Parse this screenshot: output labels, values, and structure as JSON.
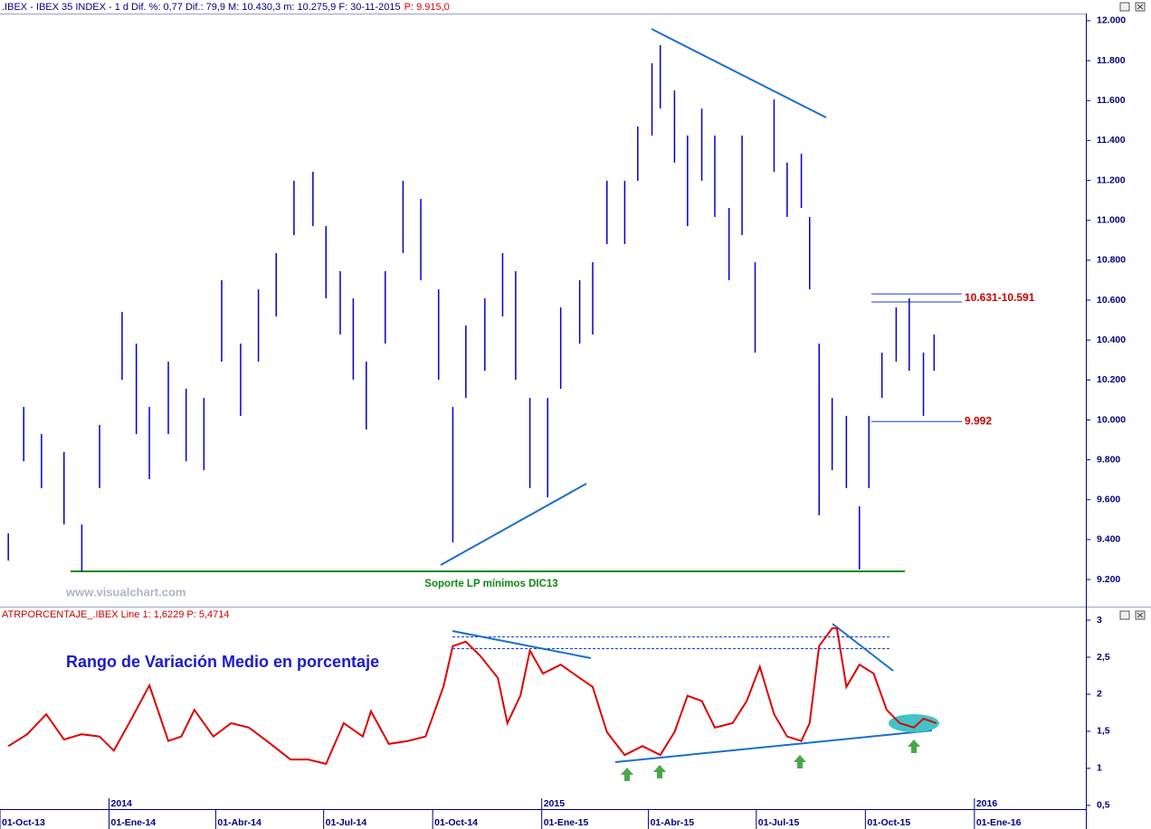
{
  "chart_data": [
    {
      "type": "range",
      "title": ".IBEX - IBEX 35 INDEX - 1 d Dif. %: 0,77 Dif.: 79,9 M: 10.430,3 m: 10.275,9 F: 30-11-2015",
      "title_price": "P: 9.915,0",
      "watermark": "www.visualchart.com",
      "annotation": "Soporte LP mínimos DIC13",
      "color": "#0000cc",
      "xlim": [
        "2013-10-01",
        "2016-04-04"
      ],
      "ylim": [
        9069,
        12036
      ],
      "yticks": [
        {
          "value": 9200,
          "label": "9.200"
        },
        {
          "value": 9400,
          "label": "9.400"
        },
        {
          "value": 9600,
          "label": "9.600"
        },
        {
          "value": 9800,
          "label": "9.800"
        },
        {
          "value": 10000,
          "label": "10.000"
        },
        {
          "value": 10200,
          "label": "10.200"
        },
        {
          "value": 10400,
          "label": "10.400"
        },
        {
          "value": 10600,
          "label": "10.600"
        },
        {
          "value": 10800,
          "label": "10.800"
        },
        {
          "value": 11000,
          "label": "11.000"
        },
        {
          "value": 11200,
          "label": "11.200"
        },
        {
          "value": 11400,
          "label": "11.400"
        },
        {
          "value": 11600,
          "label": "11.600"
        },
        {
          "value": 11800,
          "label": "11.800"
        },
        {
          "value": 12000,
          "label": "12.000"
        }
      ],
      "levels": [
        {
          "label": "10.631-10.591",
          "values": [
            10631,
            10591
          ]
        },
        {
          "label": "9.992",
          "values": [
            9992
          ]
        }
      ],
      "x": [
        "2013-10-08",
        "2013-10-21",
        "2013-11-05",
        "2013-11-24",
        "2013-12-09",
        "2013-12-24",
        "2014-01-12",
        "2014-01-24",
        "2014-02-04",
        "2014-02-20",
        "2014-03-07",
        "2014-03-22",
        "2014-04-06",
        "2014-04-22",
        "2014-05-07",
        "2014-05-22",
        "2014-06-06",
        "2014-06-22",
        "2014-07-03",
        "2014-07-15",
        "2014-07-26",
        "2014-08-06",
        "2014-08-22",
        "2014-09-06",
        "2014-09-21",
        "2014-10-06",
        "2014-10-18",
        "2014-10-29",
        "2014-11-14",
        "2014-11-29",
        "2014-12-10",
        "2014-12-22",
        "2015-01-06",
        "2015-01-17",
        "2015-02-02",
        "2015-02-13",
        "2015-02-25",
        "2015-03-12",
        "2015-03-23",
        "2015-04-04",
        "2015-04-11",
        "2015-04-23",
        "2015-05-04",
        "2015-05-16",
        "2015-05-27",
        "2015-06-08",
        "2015-06-19",
        "2015-06-30",
        "2015-07-16",
        "2015-07-27",
        "2015-08-08",
        "2015-08-15",
        "2015-08-23",
        "2015-09-03",
        "2015-09-15",
        "2015-09-26",
        "2015-10-04",
        "2015-10-15",
        "2015-10-27",
        "2015-11-07",
        "2015-11-19",
        "2015-11-28"
      ],
      "high": [
        9431,
        10065,
        9929,
        9839,
        9476,
        9975,
        10541,
        10382,
        10065,
        10292,
        10156,
        10110,
        10700,
        10382,
        10654,
        10836,
        11198,
        11243,
        10971,
        10745,
        10609,
        10292,
        10745,
        11198,
        11107,
        10654,
        10065,
        10473,
        10609,
        10836,
        10745,
        10110,
        10110,
        10564,
        10700,
        10790,
        11198,
        11198,
        11470,
        11787,
        11878,
        11651,
        11425,
        11560,
        11425,
        11062,
        11425,
        10790,
        11606,
        11289,
        11334,
        11017,
        10382,
        10110,
        10020,
        9567,
        10020,
        10337,
        10564,
        10609,
        10337,
        10428
      ],
      "low": [
        9295,
        9793,
        9658,
        9476,
        9241,
        9658,
        10201,
        9929,
        9703,
        9929,
        9793,
        9748,
        10292,
        10020,
        10292,
        10518,
        10926,
        10971,
        10609,
        10428,
        10201,
        9952,
        10382,
        10836,
        10700,
        10201,
        9386,
        10110,
        10246,
        10518,
        10201,
        9658,
        9612,
        10156,
        10382,
        10428,
        10881,
        10881,
        11198,
        11425,
        11560,
        11289,
        10971,
        11198,
        11017,
        10700,
        10926,
        10337,
        11243,
        11017,
        11062,
        10654,
        9522,
        9748,
        9658,
        9250,
        9658,
        10110,
        10292,
        10246,
        10020,
        10246
      ]
    },
    {
      "type": "line",
      "title": "ATRPORCENTAJE_.IBEX Line 1: 1,6229 P: 5,4714",
      "annotation": "Rango de Variación Medio en porcentaje",
      "color": "#e00000",
      "xlim": [
        "2013-10-01",
        "2016-04-04"
      ],
      "ylim": [
        0.45,
        3.0
      ],
      "yticks": [
        {
          "value": 0.5,
          "label": "0,5"
        },
        1,
        {
          "value": 1.5,
          "label": "1,5"
        },
        2,
        {
          "value": 2.5,
          "label": "2,5"
        },
        3
      ],
      "xticks": [
        {
          "value": "2013-10-01",
          "label": "01-Oct-13"
        },
        {
          "value": "2014-01-01",
          "label": "01-Ene-14"
        },
        {
          "value": "2014-04-01",
          "label": "01-Abr-14"
        },
        {
          "value": "2014-07-01",
          "label": "01-Jul-14"
        },
        {
          "value": "2014-10-01",
          "label": "01-Oct-14"
        },
        {
          "value": "2015-01-01",
          "label": "01-Ene-15"
        },
        {
          "value": "2015-04-01",
          "label": "01-Abr-15"
        },
        {
          "value": "2015-07-01",
          "label": "01-Jul-15"
        },
        {
          "value": "2015-10-01",
          "label": "01-Oct-15"
        },
        {
          "value": "2016-01-01",
          "label": "01-Ene-16"
        }
      ],
      "year_ticks": [
        {
          "value": "2014-01-01",
          "label": "2014"
        },
        {
          "value": "2015-01-01",
          "label": "2015"
        },
        {
          "value": "2016-01-01",
          "label": "2016"
        }
      ],
      "x": [
        "2013-10-08",
        "2013-10-24",
        "2013-11-09",
        "2013-11-24",
        "2013-12-09",
        "2013-12-24",
        "2014-01-05",
        "2014-01-20",
        "2014-02-04",
        "2014-02-20",
        "2014-03-03",
        "2014-03-14",
        "2014-03-30",
        "2014-04-14",
        "2014-04-29",
        "2014-05-14",
        "2014-06-03",
        "2014-06-18",
        "2014-07-03",
        "2014-07-18",
        "2014-08-03",
        "2014-08-10",
        "2014-08-25",
        "2014-09-10",
        "2014-09-25",
        "2014-10-10",
        "2014-10-18",
        "2014-10-29",
        "2014-11-10",
        "2014-11-25",
        "2014-12-03",
        "2014-12-14",
        "2014-12-22",
        "2015-01-02",
        "2015-01-17",
        "2015-02-02",
        "2015-02-13",
        "2015-02-25",
        "2015-03-12",
        "2015-03-27",
        "2015-04-11",
        "2015-04-23",
        "2015-05-04",
        "2015-05-16",
        "2015-05-27",
        "2015-06-11",
        "2015-06-23",
        "2015-07-04",
        "2015-07-16",
        "2015-07-27",
        "2015-08-08",
        "2015-08-15",
        "2015-08-23",
        "2015-09-03",
        "2015-09-07",
        "2015-09-15",
        "2015-09-26",
        "2015-10-08",
        "2015-10-19",
        "2015-10-30",
        "2015-11-11",
        "2015-11-19",
        "2015-11-30"
      ],
      "values": [
        1.3,
        1.46,
        1.73,
        1.39,
        1.46,
        1.43,
        1.24,
        1.67,
        2.12,
        1.37,
        1.43,
        1.79,
        1.43,
        1.61,
        1.55,
        1.37,
        1.12,
        1.12,
        1.06,
        1.61,
        1.43,
        1.77,
        1.33,
        1.37,
        1.43,
        2.1,
        2.65,
        2.71,
        2.52,
        2.22,
        1.61,
        1.98,
        2.59,
        2.28,
        2.4,
        2.22,
        2.1,
        1.49,
        1.18,
        1.3,
        1.18,
        1.49,
        1.98,
        1.91,
        1.55,
        1.61,
        1.91,
        2.37,
        1.73,
        1.43,
        1.37,
        1.61,
        2.65,
        2.89,
        2.89,
        2.1,
        2.4,
        2.28,
        1.79,
        1.61,
        1.55,
        1.67,
        1.61
      ]
    }
  ]
}
